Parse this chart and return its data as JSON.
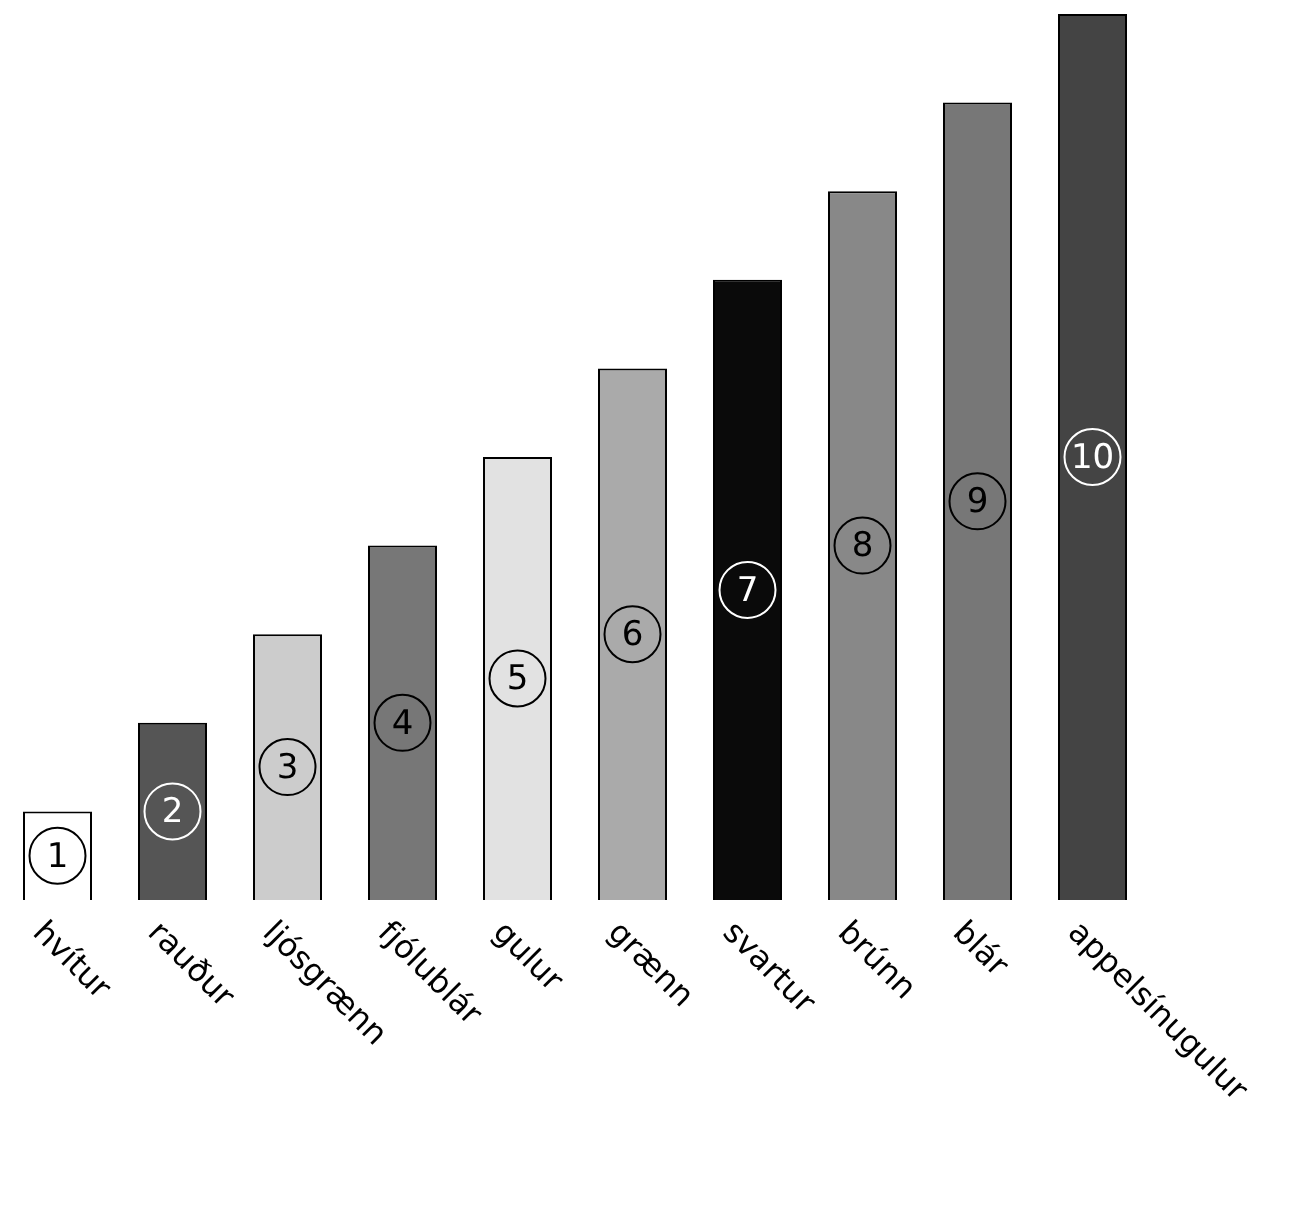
{
  "chart_data": {
    "type": "bar",
    "categories": [
      "hvítur",
      "rauður",
      "ljósgrænn",
      "fjólublár",
      "gulur",
      "grænn",
      "svartur",
      "brúnn",
      "blár",
      "appelsínugulur"
    ],
    "values": [
      1,
      2,
      3,
      4,
      5,
      6,
      7,
      8,
      9,
      10
    ],
    "colors": [
      "#ffffff",
      "#555555",
      "#cccccc",
      "#777777",
      "#e2e2e2",
      "#aaaaaa",
      "#0a0a0a",
      "#888888",
      "#777777",
      "#444444"
    ],
    "ylim": [
      0,
      10
    ],
    "data_labels": true,
    "grid": false,
    "legend": false,
    "tick_labels": false
  }
}
